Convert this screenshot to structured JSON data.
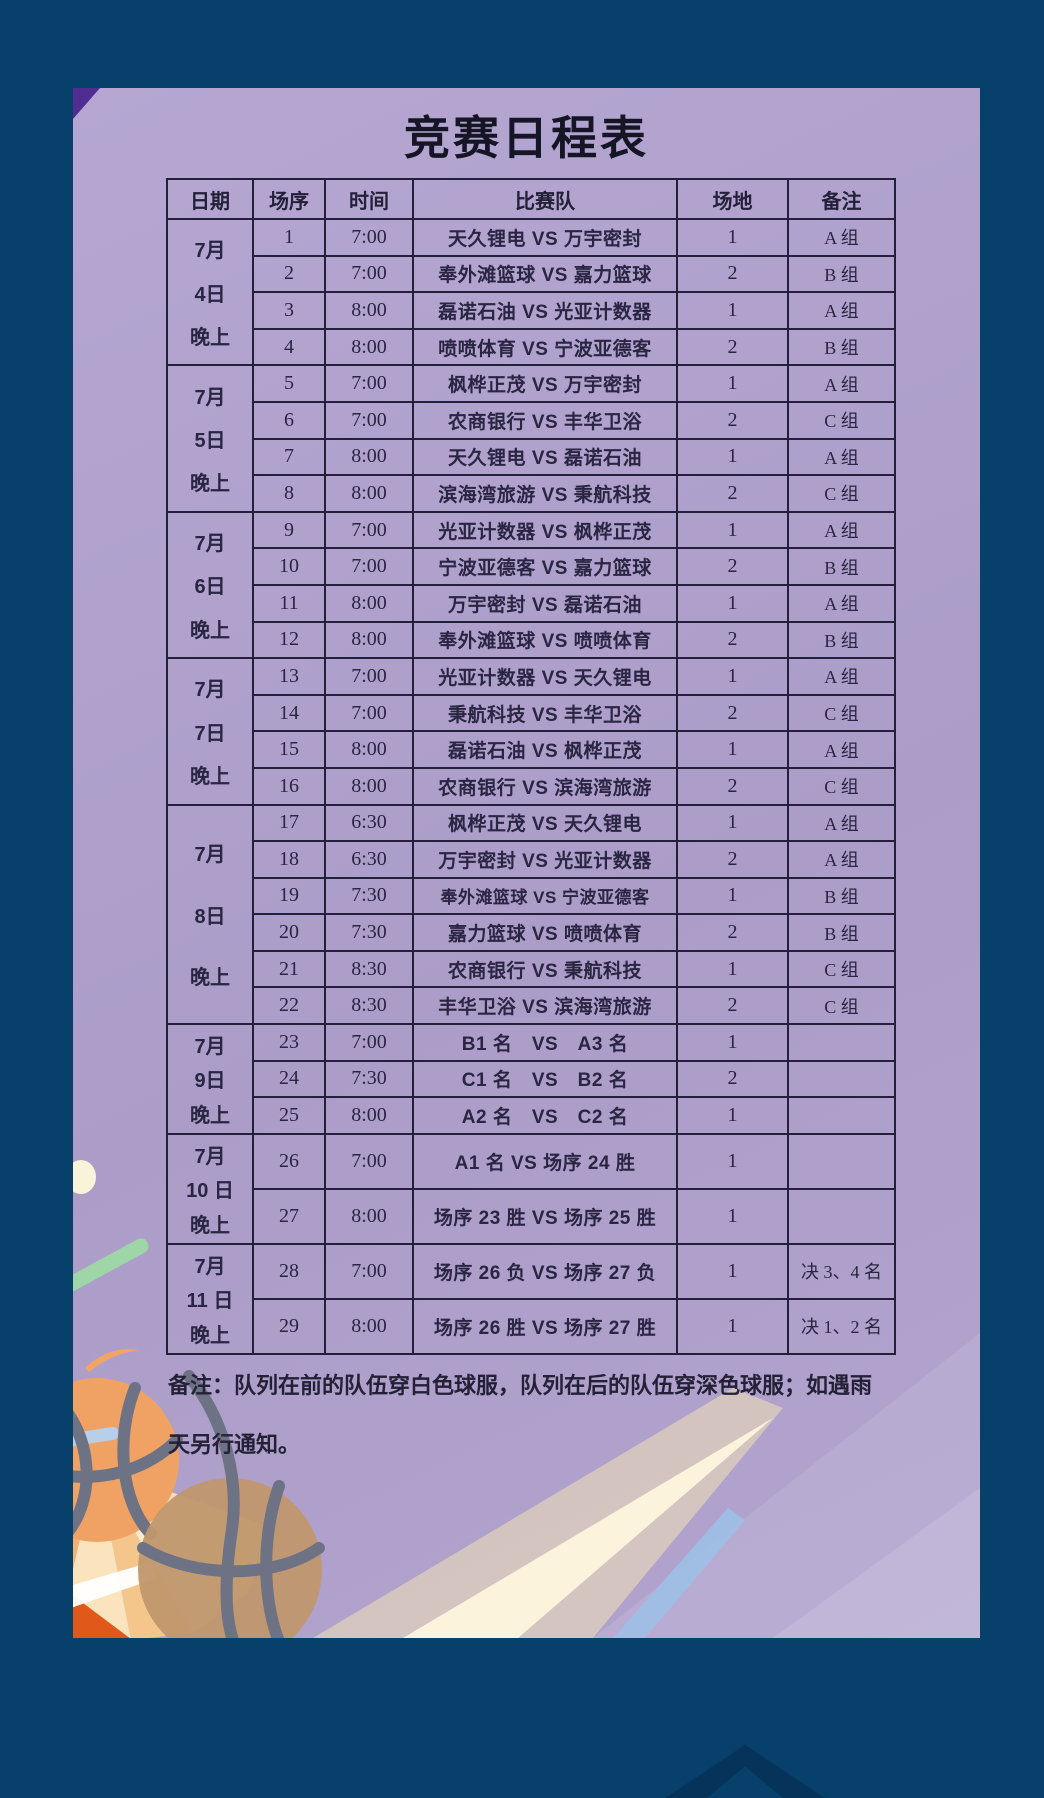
{
  "title": "竞赛日程表",
  "columns": [
    "日期",
    "场序",
    "时间",
    "比赛队",
    "场地",
    "备注"
  ],
  "groups": [
    {
      "date": [
        "7月",
        "4日",
        "晚上"
      ],
      "rows": [
        {
          "no": "1",
          "time": "7:00",
          "teams": "天久锂电 VS 万宇密封",
          "venue": "1",
          "remark": "A 组"
        },
        {
          "no": "2",
          "time": "7:00",
          "teams": "奉外滩篮球 VS 嘉力篮球",
          "venue": "2",
          "remark": "B 组"
        },
        {
          "no": "3",
          "time": "8:00",
          "teams": "磊诺石油 VS 光亚计数器",
          "venue": "1",
          "remark": "A 组"
        },
        {
          "no": "4",
          "time": "8:00",
          "teams": "喷喷体育 VS 宁波亚德客",
          "venue": "2",
          "remark": "B 组"
        }
      ]
    },
    {
      "date": [
        "7月",
        "5日",
        "晚上"
      ],
      "rows": [
        {
          "no": "5",
          "time": "7:00",
          "teams": "枫桦正茂 VS 万宇密封",
          "venue": "1",
          "remark": "A 组"
        },
        {
          "no": "6",
          "time": "7:00",
          "teams": "农商银行 VS 丰华卫浴",
          "venue": "2",
          "remark": "C 组"
        },
        {
          "no": "7",
          "time": "8:00",
          "teams": "天久锂电 VS 磊诺石油",
          "venue": "1",
          "remark": "A 组"
        },
        {
          "no": "8",
          "time": "8:00",
          "teams": "滨海湾旅游 VS 秉航科技",
          "venue": "2",
          "remark": "C 组"
        }
      ]
    },
    {
      "date": [
        "7月",
        "6日",
        "晚上"
      ],
      "rows": [
        {
          "no": "9",
          "time": "7:00",
          "teams": "光亚计数器 VS 枫桦正茂",
          "venue": "1",
          "remark": "A 组"
        },
        {
          "no": "10",
          "time": "7:00",
          "teams": "宁波亚德客 VS 嘉力篮球",
          "venue": "2",
          "remark": "B 组"
        },
        {
          "no": "11",
          "time": "8:00",
          "teams": "万宇密封 VS 磊诺石油",
          "venue": "1",
          "remark": "A 组"
        },
        {
          "no": "12",
          "time": "8:00",
          "teams": "奉外滩篮球 VS 喷喷体育",
          "venue": "2",
          "remark": "B 组"
        }
      ]
    },
    {
      "date": [
        "7月",
        "7日",
        "晚上"
      ],
      "rows": [
        {
          "no": "13",
          "time": "7:00",
          "teams": "光亚计数器 VS 天久锂电",
          "venue": "1",
          "remark": "A 组"
        },
        {
          "no": "14",
          "time": "7:00",
          "teams": "秉航科技 VS 丰华卫浴",
          "venue": "2",
          "remark": "C 组"
        },
        {
          "no": "15",
          "time": "8:00",
          "teams": "磊诺石油 VS 枫桦正茂",
          "venue": "1",
          "remark": "A 组"
        },
        {
          "no": "16",
          "time": "8:00",
          "teams": "农商银行 VS 滨海湾旅游",
          "venue": "2",
          "remark": "C 组"
        }
      ]
    },
    {
      "date": [
        "7月",
        "8日",
        "晚上"
      ],
      "rows": [
        {
          "no": "17",
          "time": "6:30",
          "teams": "枫桦正茂 VS 天久锂电",
          "venue": "1",
          "remark": "A 组"
        },
        {
          "no": "18",
          "time": "6:30",
          "teams": "万宇密封 VS 光亚计数器",
          "venue": "2",
          "remark": "A 组"
        },
        {
          "no": "19",
          "time": "7:30",
          "teams": "奉外滩篮球 VS 宁波亚德客",
          "venue": "1",
          "remark": "B 组",
          "small": true
        },
        {
          "no": "20",
          "time": "7:30",
          "teams": "嘉力篮球 VS 喷喷体育",
          "venue": "2",
          "remark": "B 组"
        },
        {
          "no": "21",
          "time": "8:30",
          "teams": "农商银行 VS 秉航科技",
          "venue": "1",
          "remark": "C 组"
        },
        {
          "no": "22",
          "time": "8:30",
          "teams": "丰华卫浴 VS 滨海湾旅游",
          "venue": "2",
          "remark": "C 组"
        }
      ]
    },
    {
      "date": [
        "7月",
        "9日",
        "晚上"
      ],
      "rows": [
        {
          "no": "23",
          "time": "7:00",
          "teams": "B1 名　VS　A3 名",
          "venue": "1",
          "remark": ""
        },
        {
          "no": "24",
          "time": "7:30",
          "teams": "C1 名　VS　B2 名",
          "venue": "2",
          "remark": ""
        },
        {
          "no": "25",
          "time": "8:00",
          "teams": "A2 名　VS　C2 名",
          "venue": "1",
          "remark": ""
        }
      ]
    },
    {
      "date": [
        "7月",
        "10 日",
        "晚上"
      ],
      "tall": true,
      "rows": [
        {
          "no": "26",
          "time": "7:00",
          "teams": "A1 名 VS 场序 24 胜",
          "venue": "1",
          "remark": ""
        },
        {
          "no": "27",
          "time": "8:00",
          "teams": "场序 23 胜 VS 场序 25 胜",
          "venue": "1",
          "remark": ""
        }
      ]
    },
    {
      "date": [
        "7月",
        "11 日",
        "晚上"
      ],
      "tall": true,
      "rows": [
        {
          "no": "28",
          "time": "7:00",
          "teams": "场序 26 负 VS 场序 27 负",
          "venue": "1",
          "remark": "决 3、4 名"
        },
        {
          "no": "29",
          "time": "8:00",
          "teams": "场序 26 胜 VS 场序 27 胜",
          "venue": "1",
          "remark": "决 1、2 名"
        }
      ]
    }
  ],
  "note": "备注：队列在前的队伍穿白色球服，队列在后的队伍穿深色球服；如遇雨天另行通知。",
  "colors": {
    "background": "#07406a",
    "poster": "#b1a3ce",
    "line": "#23203a",
    "text": "#2a2542",
    "accent_purple": "#4f2d92",
    "ball_orange": "#f0a265",
    "ball_tan": "#c0976d",
    "seam_gray": "#6d7284",
    "beam_cream": "#fdf6dd",
    "beam_blue": "#9dc0e6",
    "deco_green": "#9fd6a8",
    "deco_orange": "#f2a466",
    "deco_cream": "#f8f4da"
  }
}
